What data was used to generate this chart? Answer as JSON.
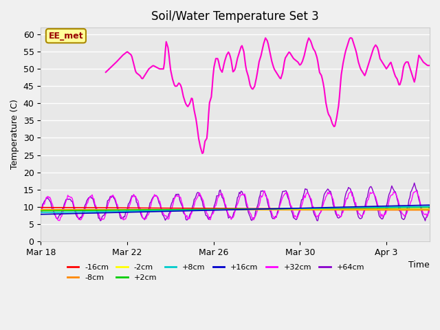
{
  "title": "Soil/Water Temperature Set 3",
  "xlabel": "Time",
  "ylabel": "Temperature (C)",
  "ylim": [
    0,
    62
  ],
  "xlim_start": 0,
  "xlim_end": 18,
  "xtick_labels": [
    "Mar 18",
    "Mar 22",
    "Mar 26",
    "Mar 30",
    "Apr 3"
  ],
  "xtick_positions": [
    0,
    4,
    8,
    12,
    16
  ],
  "ytick_positions": [
    0,
    5,
    10,
    15,
    20,
    25,
    30,
    35,
    40,
    45,
    50,
    55,
    60
  ],
  "background_color": "#e8e8e8",
  "plot_bg_color": "#e8e8e8",
  "legend_entries": [
    "-16cm",
    "-8cm",
    "-2cm",
    "+2cm",
    "+8cm",
    "+16cm",
    "+32cm",
    "+64cm"
  ],
  "legend_colors": [
    "#ff0000",
    "#ff8800",
    "#ffff00",
    "#00cc00",
    "#00cccc",
    "#0000cc",
    "#ff00ff",
    "#8800cc"
  ],
  "annotation_text": "EE_met",
  "annotation_bg": "#ffff99",
  "annotation_border": "#aa8800"
}
